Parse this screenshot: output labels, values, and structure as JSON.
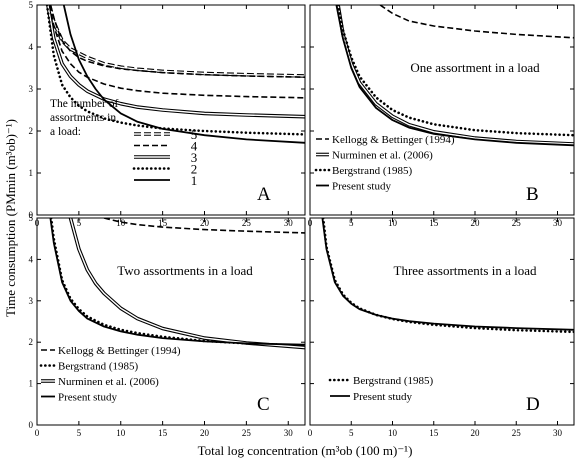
{
  "figure": {
    "ylabel": "Time consumption (PMmin (m³ob)⁻¹)",
    "xlabel": "Total log concentration (m³ob (100 m)⁻¹)"
  },
  "chart_data": [
    {
      "type": "line",
      "panel_letter": "A",
      "xlim": [
        0,
        32
      ],
      "ylim": [
        0,
        5
      ],
      "xticks": [
        0,
        5,
        10,
        15,
        20,
        25,
        30
      ],
      "yticks": [
        0,
        1,
        2,
        3,
        4,
        5
      ],
      "legend_title": [
        "The number of",
        "assortments in",
        "a load:"
      ],
      "legend_position": "bottom-left",
      "series": [
        {
          "name": "5",
          "style": "double-dashed",
          "x": [
            1.5,
            2,
            3,
            4,
            5,
            6,
            8,
            10,
            12,
            15,
            20,
            25,
            32
          ],
          "y": [
            5.0,
            4.6,
            4.15,
            3.95,
            3.85,
            3.75,
            3.6,
            3.52,
            3.47,
            3.42,
            3.37,
            3.34,
            3.31
          ]
        },
        {
          "name": "4",
          "style": "dashed",
          "x": [
            1.6,
            2,
            2.5,
            3,
            4,
            5,
            6,
            8,
            10,
            12,
            15,
            20,
            25,
            32
          ],
          "y": [
            5.0,
            4.7,
            4.4,
            4.15,
            3.9,
            3.75,
            3.66,
            3.55,
            3.48,
            3.44,
            3.39,
            3.34,
            3.31,
            3.28
          ]
        },
        {
          "name": "3",
          "style": "double",
          "x": [
            1.3,
            2,
            3,
            4,
            5,
            6,
            8,
            10,
            12,
            15,
            20,
            25,
            32
          ],
          "y": [
            5.0,
            4.2,
            3.6,
            3.3,
            3.1,
            2.95,
            2.76,
            2.65,
            2.57,
            2.5,
            2.42,
            2.38,
            2.34
          ]
        },
        {
          "name": "2",
          "style": "dotted",
          "x": [
            1.2,
            2,
            3,
            4,
            5,
            6,
            8,
            10,
            12,
            15,
            20,
            25,
            32
          ],
          "y": [
            5.0,
            3.8,
            3.1,
            2.8,
            2.6,
            2.47,
            2.3,
            2.2,
            2.13,
            2.06,
            2.0,
            1.96,
            1.92
          ]
        },
        {
          "name": "1",
          "style": "solid",
          "x": [
            3.2,
            4,
            5,
            6,
            7,
            8,
            10,
            12,
            15,
            20,
            25,
            32
          ],
          "y": [
            5.0,
            4.3,
            3.7,
            3.3,
            3.0,
            2.75,
            2.42,
            2.22,
            2.05,
            1.9,
            1.8,
            1.72
          ]
        },
        {
          "name": "",
          "style": "dashed",
          "x": [
            1.5,
            2,
            3,
            4,
            5,
            6,
            8,
            10,
            12,
            15,
            20,
            25,
            32
          ],
          "y": [
            5.0,
            4.5,
            3.9,
            3.6,
            3.4,
            3.28,
            3.12,
            3.02,
            2.96,
            2.9,
            2.85,
            2.82,
            2.79
          ]
        }
      ]
    },
    {
      "type": "line",
      "panel_letter": "B",
      "annotation": "One assortment in a load",
      "xlim": [
        0,
        32
      ],
      "ylim": [
        0,
        5
      ],
      "xticks": [
        0,
        5,
        10,
        15,
        20,
        25,
        30
      ],
      "yticks": [
        0,
        1,
        2,
        3,
        4,
        5
      ],
      "legend_position": "bottom-left",
      "series": [
        {
          "name": "Kellogg & Bettinger (1994)",
          "style": "dashed",
          "x": [
            8.5,
            10,
            12,
            15,
            20,
            25,
            32
          ],
          "y": [
            5.0,
            4.8,
            4.62,
            4.5,
            4.38,
            4.3,
            4.22
          ]
        },
        {
          "name": "Nurminen et al. (2006)",
          "style": "double",
          "x": [
            3.4,
            4,
            5,
            6,
            8,
            10,
            12,
            15,
            20,
            25,
            32
          ],
          "y": [
            5.0,
            4.3,
            3.6,
            3.15,
            2.65,
            2.35,
            2.15,
            1.98,
            1.83,
            1.75,
            1.69
          ]
        },
        {
          "name": "Bergstrand (1985)",
          "style": "dotted",
          "x": [
            3.4,
            4,
            5,
            6,
            8,
            10,
            12,
            15,
            20,
            25,
            32
          ],
          "y": [
            5.0,
            4.4,
            3.75,
            3.3,
            2.8,
            2.5,
            2.32,
            2.16,
            2.02,
            1.95,
            1.9
          ]
        },
        {
          "name": "Present study",
          "style": "solid",
          "x": [
            3.2,
            4,
            5,
            6,
            8,
            10,
            12,
            15,
            20,
            25,
            32
          ],
          "y": [
            5.0,
            4.2,
            3.5,
            3.05,
            2.55,
            2.26,
            2.08,
            1.93,
            1.8,
            1.72,
            1.66
          ]
        }
      ]
    },
    {
      "type": "line",
      "panel_letter": "C",
      "annotation": "Two assortments in a load",
      "xlim": [
        0,
        32
      ],
      "ylim": [
        0,
        5
      ],
      "xticks": [
        0,
        5,
        10,
        15,
        20,
        25,
        30
      ],
      "yticks": [
        0,
        1,
        2,
        3,
        4,
        5
      ],
      "legend_position": "bottom-left",
      "series": [
        {
          "name": "Kellogg & Bettinger (1994)",
          "style": "dashed",
          "x": [
            8,
            10,
            12,
            15,
            20,
            25,
            32
          ],
          "y": [
            5.0,
            4.9,
            4.84,
            4.78,
            4.72,
            4.68,
            4.64
          ]
        },
        {
          "name": "Bergstrand (1985)",
          "style": "dotted",
          "x": [
            1.7,
            2,
            3,
            4,
            5,
            6,
            8,
            10,
            12,
            15,
            20,
            25,
            32
          ],
          "y": [
            5.0,
            4.5,
            3.5,
            3.05,
            2.8,
            2.62,
            2.42,
            2.3,
            2.22,
            2.13,
            2.03,
            1.97,
            1.92
          ]
        },
        {
          "name": "Nurminen et al. (2006)",
          "style": "double",
          "x": [
            4,
            5,
            6,
            7,
            8,
            10,
            12,
            15,
            20,
            25,
            32
          ],
          "y": [
            5.0,
            4.25,
            3.75,
            3.42,
            3.18,
            2.82,
            2.57,
            2.33,
            2.1,
            1.98,
            1.87
          ]
        },
        {
          "name": "Present study",
          "style": "solid",
          "x": [
            1.6,
            2,
            3,
            4,
            5,
            6,
            8,
            10,
            12,
            15,
            20,
            25,
            32
          ],
          "y": [
            5.0,
            4.4,
            3.45,
            3.0,
            2.75,
            2.57,
            2.38,
            2.26,
            2.18,
            2.1,
            2.02,
            1.97,
            1.94
          ]
        }
      ]
    },
    {
      "type": "line",
      "panel_letter": "D",
      "annotation": "Three assortments in a load",
      "xlim": [
        0,
        32
      ],
      "ylim": [
        0,
        5
      ],
      "xticks": [
        0,
        5,
        10,
        15,
        20,
        25,
        30
      ],
      "yticks": [
        0,
        1,
        2,
        3,
        4,
        5
      ],
      "legend_position": "bottom-left",
      "series": [
        {
          "name": "Bergstrand (1985)",
          "style": "dotted",
          "x": [
            1.6,
            2,
            3,
            4,
            5,
            6,
            8,
            10,
            12,
            15,
            20,
            25,
            32
          ],
          "y": [
            5.0,
            4.3,
            3.5,
            3.15,
            2.95,
            2.82,
            2.66,
            2.56,
            2.49,
            2.42,
            2.34,
            2.29,
            2.25
          ]
        },
        {
          "name": "Present study",
          "style": "solid",
          "x": [
            1.5,
            2,
            3,
            4,
            5,
            6,
            8,
            10,
            12,
            15,
            20,
            25,
            32
          ],
          "y": [
            5.0,
            4.25,
            3.45,
            3.12,
            2.93,
            2.8,
            2.66,
            2.57,
            2.51,
            2.45,
            2.38,
            2.34,
            2.3
          ]
        }
      ]
    }
  ]
}
